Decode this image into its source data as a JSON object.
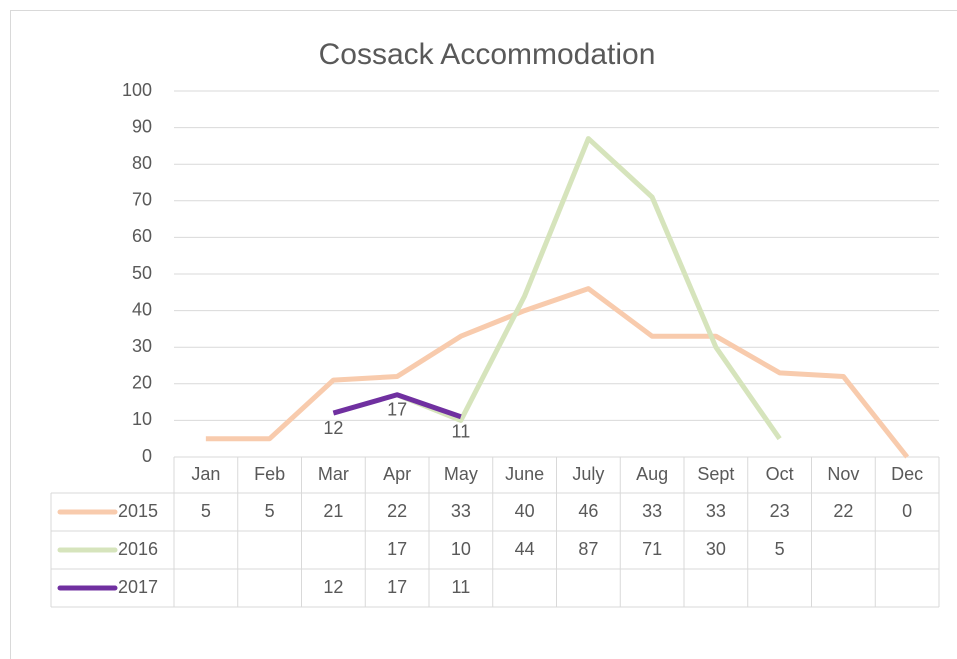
{
  "chart_data": {
    "type": "line",
    "title": "Cossack Accommodation",
    "categories": [
      "Jan",
      "Feb",
      "Mar",
      "Apr",
      "May",
      "June",
      "July",
      "Aug",
      "Sept",
      "Oct",
      "Nov",
      "Dec"
    ],
    "series": [
      {
        "name": "2015",
        "color": "#f8cbad",
        "values": [
          5,
          5,
          21,
          22,
          33,
          40,
          46,
          33,
          33,
          23,
          22,
          0
        ]
      },
      {
        "name": "2016",
        "color": "#d6e4bc",
        "values": [
          null,
          null,
          null,
          17,
          10,
          44,
          87,
          71,
          30,
          5,
          null,
          null
        ]
      },
      {
        "name": "2017",
        "color": "#7030a0",
        "values": [
          null,
          null,
          12,
          17,
          11,
          null,
          null,
          null,
          null,
          null,
          null,
          null
        ],
        "data_labels": true
      }
    ],
    "ylim": [
      0,
      100
    ],
    "yticks": [
      0,
      10,
      20,
      30,
      40,
      50,
      60,
      70,
      80,
      90,
      100
    ],
    "grid": true,
    "data_table": true
  }
}
